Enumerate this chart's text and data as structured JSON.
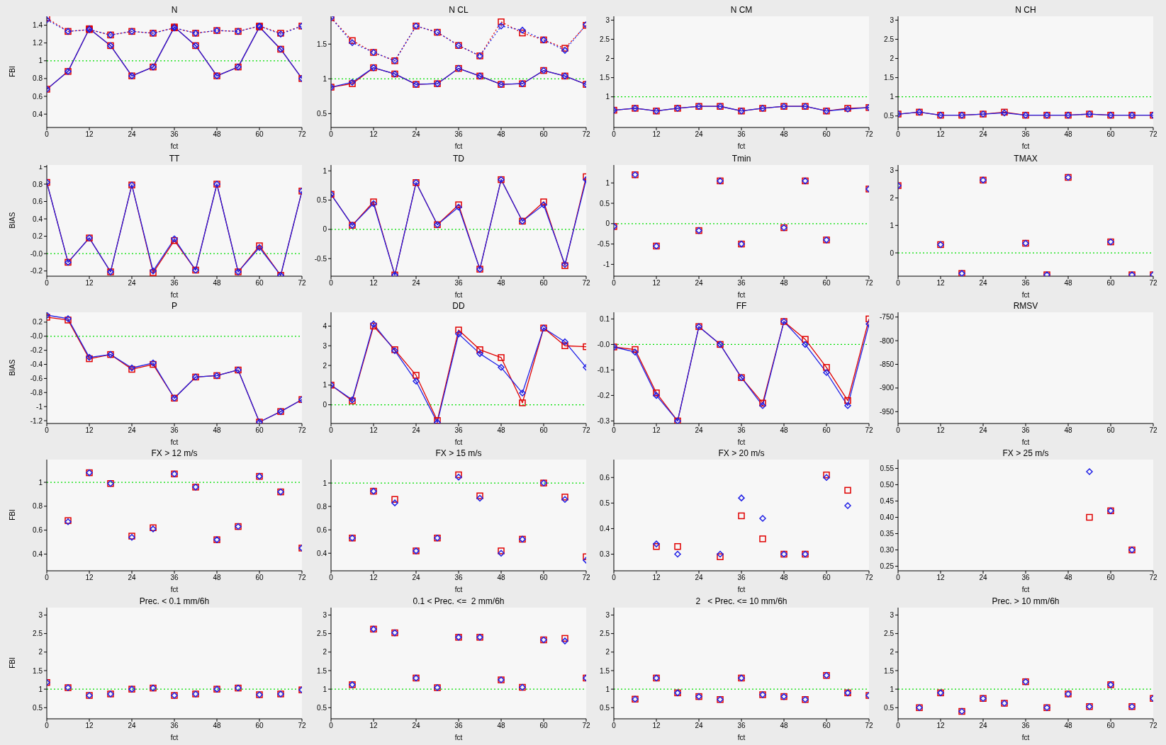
{
  "chart_data": [
    {
      "type": "line",
      "title": "N",
      "xlabel": "fct",
      "ylabel": "FBI",
      "x": [
        0,
        6,
        12,
        18,
        24,
        30,
        36,
        42,
        48,
        54,
        60,
        66,
        72
      ],
      "xlim": [
        0,
        72
      ],
      "xticks": [
        0,
        12,
        24,
        36,
        48,
        60,
        72
      ],
      "ylim": [
        0.25,
        1.5
      ],
      "yticks": [
        0.4,
        0.6,
        0.8,
        1.0,
        1.2,
        1.4
      ],
      "ref_lines": [
        {
          "axis": "y",
          "value": 1,
          "color": "#00e000",
          "line_style": "dotted"
        }
      ],
      "series": [
        {
          "color": "#e00000",
          "marker": "square",
          "line_style": "solid",
          "values": [
            0.68,
            0.88,
            1.36,
            1.17,
            0.83,
            0.93,
            1.38,
            1.17,
            0.83,
            0.93,
            1.38,
            1.13,
            0.8
          ]
        },
        {
          "color": "#2020e6",
          "marker": "diamond",
          "line_style": "solid",
          "values": [
            0.68,
            0.88,
            1.36,
            1.17,
            0.83,
            0.93,
            1.38,
            1.17,
            0.83,
            0.93,
            1.38,
            1.13,
            0.8
          ]
        },
        {
          "color": "#e00000",
          "marker": "square",
          "line_style": "dotted",
          "values": [
            1.48,
            1.33,
            1.35,
            1.29,
            1.33,
            1.31,
            1.37,
            1.31,
            1.34,
            1.33,
            1.39,
            1.31,
            1.39
          ]
        },
        {
          "color": "#2020e6",
          "marker": "diamond",
          "line_style": "dotted",
          "values": [
            1.46,
            1.33,
            1.35,
            1.29,
            1.33,
            1.31,
            1.37,
            1.31,
            1.34,
            1.33,
            1.39,
            1.3,
            1.39
          ]
        }
      ]
    },
    {
      "type": "line",
      "title": "N CL",
      "xlabel": "fct",
      "x": [
        0,
        6,
        12,
        18,
        24,
        30,
        36,
        42,
        48,
        54,
        60,
        66,
        72
      ],
      "xlim": [
        0,
        72
      ],
      "xticks": [
        0,
        12,
        24,
        36,
        48,
        60,
        72
      ],
      "ylim": [
        0.3,
        1.9
      ],
      "yticks": [
        0.5,
        1.0,
        1.5
      ],
      "ref_lines": [
        {
          "axis": "y",
          "value": 1,
          "color": "#00e000",
          "line_style": "dotted"
        }
      ],
      "series": [
        {
          "color": "#e00000",
          "marker": "square",
          "line_style": "solid",
          "values": [
            0.88,
            0.93,
            1.16,
            1.07,
            0.92,
            0.93,
            1.15,
            1.04,
            0.92,
            0.93,
            1.12,
            1.04,
            0.92
          ]
        },
        {
          "color": "#2020e6",
          "marker": "diamond",
          "line_style": "solid",
          "values": [
            0.88,
            0.95,
            1.16,
            1.07,
            0.92,
            0.93,
            1.15,
            1.04,
            0.92,
            0.93,
            1.12,
            1.04,
            0.92
          ]
        },
        {
          "color": "#e00000",
          "marker": "square",
          "line_style": "dotted",
          "values": [
            1.88,
            1.55,
            1.38,
            1.26,
            1.76,
            1.67,
            1.48,
            1.33,
            1.82,
            1.66,
            1.56,
            1.44,
            1.77
          ]
        },
        {
          "color": "#2020e6",
          "marker": "diamond",
          "line_style": "dotted",
          "values": [
            1.88,
            1.52,
            1.38,
            1.26,
            1.76,
            1.67,
            1.48,
            1.33,
            1.76,
            1.7,
            1.56,
            1.41,
            1.78
          ]
        }
      ]
    },
    {
      "type": "line",
      "title": "N CM",
      "xlabel": "fct",
      "x": [
        0,
        6,
        12,
        18,
        24,
        30,
        36,
        42,
        48,
        54,
        60,
        66,
        72
      ],
      "xlim": [
        0,
        72
      ],
      "xticks": [
        0,
        12,
        24,
        36,
        48,
        60,
        72
      ],
      "ylim": [
        0.2,
        3.1
      ],
      "yticks": [
        1.0,
        1.5,
        2.0,
        2.5,
        3.0
      ],
      "ref_lines": [
        {
          "axis": "y",
          "value": 1,
          "color": "#00e000",
          "line_style": "dotted"
        }
      ],
      "series": [
        {
          "color": "#e00000",
          "marker": "square",
          "line_style": "solid",
          "values": [
            0.65,
            0.7,
            0.63,
            0.7,
            0.75,
            0.75,
            0.63,
            0.7,
            0.75,
            0.75,
            0.63,
            0.7,
            0.72
          ]
        },
        {
          "color": "#2020e6",
          "marker": "diamond",
          "line_style": "solid",
          "values": [
            0.65,
            0.7,
            0.63,
            0.7,
            0.75,
            0.75,
            0.63,
            0.7,
            0.75,
            0.75,
            0.63,
            0.68,
            0.72
          ]
        }
      ]
    },
    {
      "type": "line",
      "title": "N CH",
      "xlabel": "fct",
      "x": [
        0,
        6,
        12,
        18,
        24,
        30,
        36,
        42,
        48,
        54,
        60,
        66,
        72
      ],
      "xlim": [
        0,
        72
      ],
      "xticks": [
        0,
        12,
        24,
        36,
        48,
        60,
        72
      ],
      "ylim": [
        0.2,
        3.1
      ],
      "yticks": [
        0.5,
        1.0,
        1.5,
        2.0,
        2.5,
        3.0
      ],
      "ref_lines": [
        {
          "axis": "y",
          "value": 1,
          "color": "#00e000",
          "line_style": "dotted"
        }
      ],
      "series": [
        {
          "color": "#e00000",
          "marker": "square",
          "line_style": "solid",
          "values": [
            0.55,
            0.6,
            0.52,
            0.52,
            0.55,
            0.6,
            0.52,
            0.52,
            0.52,
            0.55,
            0.52,
            0.52,
            0.52
          ]
        },
        {
          "color": "#2020e6",
          "marker": "diamond",
          "line_style": "solid",
          "values": [
            0.55,
            0.6,
            0.52,
            0.52,
            0.55,
            0.58,
            0.52,
            0.52,
            0.52,
            0.55,
            0.52,
            0.52,
            0.52
          ]
        }
      ]
    },
    {
      "type": "line",
      "title": "TT",
      "xlabel": "fct",
      "ylabel": "BIAS",
      "x": [
        0,
        6,
        12,
        18,
        24,
        30,
        36,
        42,
        48,
        54,
        60,
        66,
        72
      ],
      "xlim": [
        0,
        72
      ],
      "xticks": [
        0,
        12,
        24,
        36,
        48,
        60,
        72
      ],
      "ylim": [
        -0.26,
        1.02
      ],
      "yticks": [
        -0.2,
        {
          "value": 0,
          "label": "-0.0"
        },
        0.2,
        0.4,
        0.6,
        0.8,
        1.0
      ],
      "ref_lines": [
        {
          "axis": "y",
          "value": 0,
          "color": "#00e000",
          "line_style": "dotted"
        }
      ],
      "series": [
        {
          "color": "#e00000",
          "marker": "square",
          "line_style": "solid",
          "values": [
            0.82,
            -0.1,
            0.18,
            -0.21,
            0.79,
            -0.22,
            0.15,
            -0.19,
            0.8,
            -0.21,
            0.09,
            -0.25,
            0.72
          ]
        },
        {
          "color": "#2020e6",
          "marker": "diamond",
          "line_style": "solid",
          "values": [
            0.82,
            -0.1,
            0.18,
            -0.21,
            0.79,
            -0.2,
            0.17,
            -0.19,
            0.8,
            -0.21,
            0.07,
            -0.25,
            0.72
          ]
        }
      ]
    },
    {
      "type": "line",
      "title": "TD",
      "xlabel": "fct",
      "x": [
        0,
        6,
        12,
        18,
        24,
        30,
        36,
        42,
        48,
        54,
        60,
        66,
        72
      ],
      "xlim": [
        0,
        72
      ],
      "xticks": [
        0,
        12,
        24,
        36,
        48,
        60,
        72
      ],
      "ylim": [
        -0.8,
        1.1
      ],
      "yticks": [
        -0.5,
        0.0,
        0.5,
        1.0
      ],
      "ref_lines": [
        {
          "axis": "y",
          "value": 0,
          "color": "#00e000",
          "line_style": "dotted"
        }
      ],
      "series": [
        {
          "color": "#e00000",
          "marker": "square",
          "line_style": "solid",
          "values": [
            0.6,
            0.07,
            0.47,
            -0.78,
            0.8,
            0.08,
            0.42,
            -0.68,
            0.85,
            0.14,
            0.47,
            -0.62,
            0.9
          ]
        },
        {
          "color": "#2020e6",
          "marker": "diamond",
          "line_style": "solid",
          "values": [
            0.6,
            0.07,
            0.44,
            -0.78,
            0.8,
            0.08,
            0.38,
            -0.68,
            0.85,
            0.14,
            0.42,
            -0.6,
            0.85
          ]
        }
      ]
    },
    {
      "type": "scatter",
      "title": "Tmin",
      "xlabel": "fct",
      "xlim": [
        0,
        72
      ],
      "xticks": [
        0,
        12,
        24,
        36,
        48,
        60,
        72
      ],
      "ylim": [
        -1.29,
        1.44
      ],
      "yticks": [
        -1.0,
        -0.5,
        0.0,
        0.5,
        1.0
      ],
      "ref_lines": [
        {
          "axis": "y",
          "value": 0,
          "color": "#00e000",
          "line_style": "dotted"
        }
      ],
      "series": [
        {
          "color": "#e00000",
          "marker": "square",
          "x": [
            0,
            6,
            12,
            24,
            30,
            36,
            48,
            54,
            60,
            72
          ],
          "values": [
            -0.07,
            1.2,
            -0.55,
            -0.17,
            1.05,
            -0.5,
            -0.1,
            1.05,
            -0.4,
            0.85
          ]
        },
        {
          "color": "#2020e6",
          "marker": "diamond",
          "x": [
            0,
            6,
            12,
            24,
            30,
            36,
            48,
            54,
            60,
            72
          ],
          "values": [
            -0.07,
            1.2,
            -0.55,
            -0.17,
            1.05,
            -0.5,
            -0.1,
            1.05,
            -0.4,
            0.85
          ]
        }
      ]
    },
    {
      "type": "scatter",
      "title": "TMAX",
      "xlabel": "fct",
      "xlim": [
        0,
        72
      ],
      "xticks": [
        0,
        12,
        24,
        36,
        48,
        60,
        72
      ],
      "ylim": [
        -0.85,
        3.2
      ],
      "yticks": [
        0,
        1,
        2,
        3
      ],
      "ref_lines": [
        {
          "axis": "y",
          "value": 0,
          "color": "#00e000",
          "line_style": "dotted"
        }
      ],
      "series": [
        {
          "color": "#e00000",
          "marker": "square",
          "x": [
            0,
            12,
            18,
            24,
            36,
            42,
            48,
            60,
            66,
            72
          ],
          "values": [
            2.45,
            0.3,
            -0.75,
            2.65,
            0.35,
            -0.8,
            2.75,
            0.4,
            -0.8,
            -0.8
          ]
        },
        {
          "color": "#2020e6",
          "marker": "diamond",
          "x": [
            0,
            12,
            18,
            24,
            36,
            42,
            48,
            60,
            66,
            72
          ],
          "values": [
            2.45,
            0.3,
            -0.75,
            2.65,
            0.35,
            -0.8,
            2.75,
            0.4,
            -0.8,
            -0.8
          ]
        }
      ]
    },
    {
      "type": "line",
      "title": "P",
      "xlabel": "fct",
      "ylabel": "BIAS",
      "x": [
        0,
        6,
        12,
        18,
        24,
        30,
        36,
        42,
        48,
        54,
        60,
        66,
        72
      ],
      "xlim": [
        0,
        72
      ],
      "xticks": [
        0,
        12,
        24,
        36,
        48,
        60,
        72
      ],
      "ylim": [
        -1.24,
        0.34
      ],
      "yticks": [
        -1.2,
        -1.0,
        -0.8,
        -0.6,
        -0.4,
        -0.2,
        {
          "value": 0,
          "label": "-0.0"
        },
        0.2
      ],
      "ref_lines": [
        {
          "axis": "y",
          "value": 0,
          "color": "#00e000",
          "line_style": "dotted"
        }
      ],
      "series": [
        {
          "color": "#e00000",
          "marker": "square",
          "line_style": "solid",
          "values": [
            0.27,
            0.23,
            -0.32,
            -0.26,
            -0.47,
            -0.4,
            -0.88,
            -0.58,
            -0.56,
            -0.48,
            -1.22,
            -1.07,
            -0.9
          ]
        },
        {
          "color": "#2020e6",
          "marker": "diamond",
          "line_style": "solid",
          "values": [
            0.3,
            0.25,
            -0.3,
            -0.26,
            -0.45,
            -0.38,
            -0.88,
            -0.58,
            -0.56,
            -0.48,
            -1.22,
            -1.07,
            -0.9
          ]
        }
      ]
    },
    {
      "type": "line",
      "title": "DD",
      "xlabel": "fct",
      "x": [
        0,
        6,
        12,
        18,
        24,
        30,
        36,
        42,
        48,
        54,
        60,
        66,
        72
      ],
      "xlim": [
        0,
        72
      ],
      "xticks": [
        0,
        12,
        24,
        36,
        48,
        60,
        72
      ],
      "ylim": [
        -0.95,
        4.7
      ],
      "yticks": [
        0,
        1,
        2,
        3,
        4
      ],
      "ref_lines": [
        {
          "axis": "y",
          "value": 0,
          "color": "#00e000",
          "line_style": "dotted"
        }
      ],
      "series": [
        {
          "color": "#e00000",
          "marker": "square",
          "line_style": "solid",
          "values": [
            1.0,
            0.2,
            4.0,
            2.8,
            1.5,
            -0.8,
            3.8,
            2.8,
            2.4,
            0.1,
            3.9,
            3.0,
            2.95
          ]
        },
        {
          "color": "#2020e6",
          "marker": "diamond",
          "line_style": "solid",
          "values": [
            1.0,
            0.25,
            4.1,
            2.75,
            1.2,
            -0.9,
            3.6,
            2.6,
            1.9,
            0.6,
            3.9,
            3.2,
            1.9
          ]
        }
      ]
    },
    {
      "type": "line",
      "title": "FF",
      "xlabel": "fct",
      "x": [
        0,
        6,
        12,
        18,
        24,
        30,
        36,
        42,
        48,
        54,
        60,
        66,
        72
      ],
      "xlim": [
        0,
        72
      ],
      "xticks": [
        0,
        12,
        24,
        36,
        48,
        60,
        72
      ],
      "ylim": [
        -0.31,
        0.126
      ],
      "yticks": [
        -0.3,
        -0.2,
        -0.1,
        {
          "value": 0,
          "label": "-0.0"
        },
        0.1
      ],
      "ref_lines": [
        {
          "axis": "y",
          "value": 0,
          "color": "#00e000",
          "line_style": "dotted"
        }
      ],
      "series": [
        {
          "color": "#e00000",
          "marker": "square",
          "line_style": "solid",
          "values": [
            -0.01,
            -0.02,
            -0.19,
            -0.3,
            0.07,
            0.0,
            -0.13,
            -0.23,
            0.09,
            0.02,
            -0.09,
            -0.22,
            0.1
          ]
        },
        {
          "color": "#2020e6",
          "marker": "diamond",
          "line_style": "solid",
          "values": [
            -0.01,
            -0.03,
            -0.2,
            -0.3,
            0.07,
            0.0,
            -0.13,
            -0.24,
            0.09,
            0.0,
            -0.11,
            -0.24,
            0.08
          ]
        }
      ]
    },
    {
      "type": "line",
      "title": "RMSV",
      "xlabel": "fct",
      "xlim": [
        0,
        72
      ],
      "xticks": [
        0,
        12,
        24,
        36,
        48,
        60,
        72
      ],
      "ylim": [
        -975,
        -740
      ],
      "yticks": [
        -950,
        -900,
        -850,
        -800,
        -750
      ]
    },
    {
      "type": "scatter",
      "title": "FX > 12 m/s",
      "xlabel": "fct",
      "ylabel": "FBI",
      "xlim": [
        0,
        72
      ],
      "xticks": [
        0,
        12,
        24,
        36,
        48,
        60,
        72
      ],
      "ylim": [
        0.26,
        1.19
      ],
      "yticks": [
        0.4,
        0.6,
        0.8,
        1.0
      ],
      "ref_lines": [
        {
          "axis": "y",
          "value": 1,
          "color": "#00e000",
          "line_style": "dotted"
        }
      ],
      "series": [
        {
          "color": "#e00000",
          "marker": "square",
          "x": [
            6,
            12,
            18,
            24,
            30,
            36,
            42,
            48,
            54,
            60,
            66,
            72
          ],
          "values": [
            0.68,
            1.08,
            0.99,
            0.55,
            0.62,
            1.07,
            0.96,
            0.52,
            0.63,
            1.05,
            0.92,
            0.45
          ]
        },
        {
          "color": "#2020e6",
          "marker": "diamond",
          "x": [
            6,
            12,
            18,
            24,
            30,
            36,
            42,
            48,
            54,
            60,
            66,
            72
          ],
          "values": [
            0.67,
            1.08,
            0.99,
            0.54,
            0.61,
            1.07,
            0.96,
            0.52,
            0.63,
            1.05,
            0.92,
            0.45
          ]
        }
      ]
    },
    {
      "type": "scatter",
      "title": "FX > 15 m/s",
      "xlabel": "fct",
      "xlim": [
        0,
        72
      ],
      "xticks": [
        0,
        12,
        24,
        36,
        48,
        60,
        72
      ],
      "ylim": [
        0.25,
        1.2
      ],
      "yticks": [
        0.4,
        0.6,
        0.8,
        1.0
      ],
      "ref_lines": [
        {
          "axis": "y",
          "value": 1,
          "color": "#00e000",
          "line_style": "dotted"
        }
      ],
      "series": [
        {
          "color": "#e00000",
          "marker": "square",
          "x": [
            6,
            12,
            18,
            24,
            30,
            36,
            42,
            48,
            54,
            60,
            66,
            72
          ],
          "values": [
            0.53,
            0.93,
            0.86,
            0.42,
            0.53,
            1.07,
            0.89,
            0.42,
            0.52,
            1.0,
            0.88,
            0.37
          ]
        },
        {
          "color": "#2020e6",
          "marker": "diamond",
          "x": [
            6,
            12,
            18,
            24,
            30,
            36,
            42,
            48,
            54,
            60,
            66,
            72
          ],
          "values": [
            0.53,
            0.93,
            0.83,
            0.42,
            0.53,
            1.05,
            0.87,
            0.4,
            0.52,
            1.0,
            0.86,
            0.34
          ]
        }
      ]
    },
    {
      "type": "scatter",
      "title": "FX > 20 m/s",
      "xlabel": "fct",
      "xlim": [
        0,
        72
      ],
      "xticks": [
        0,
        12,
        24,
        36,
        48,
        60,
        72
      ],
      "ylim": [
        0.235,
        0.67
      ],
      "yticks": [
        0.3,
        0.4,
        0.5,
        0.6
      ],
      "series": [
        {
          "color": "#e00000",
          "marker": "square",
          "x": [
            12,
            18,
            30,
            36,
            42,
            48,
            54,
            60,
            66
          ],
          "values": [
            0.33,
            0.33,
            0.29,
            0.45,
            0.36,
            0.3,
            0.3,
            0.61,
            0.55
          ]
        },
        {
          "color": "#2020e6",
          "marker": "diamond",
          "x": [
            12,
            18,
            30,
            36,
            42,
            48,
            54,
            60,
            66
          ],
          "values": [
            0.34,
            0.3,
            0.3,
            0.52,
            0.44,
            0.3,
            0.3,
            0.6,
            0.49
          ]
        }
      ]
    },
    {
      "type": "scatter",
      "title": "FX > 25 m/s",
      "xlabel": "fct",
      "xlim": [
        0,
        72
      ],
      "xticks": [
        0,
        12,
        24,
        36,
        48,
        60,
        72
      ],
      "ylim": [
        0.236,
        0.577
      ],
      "yticks": [
        0.25,
        {
          "value": 0.3,
          "label": "0.30"
        },
        0.35,
        {
          "value": 0.4,
          "label": "0.40"
        },
        0.45,
        {
          "value": 0.5,
          "label": "0.50"
        },
        0.55
      ],
      "series": [
        {
          "color": "#e00000",
          "marker": "square",
          "x": [
            54,
            60,
            66
          ],
          "values": [
            0.4,
            0.42,
            0.3
          ]
        },
        {
          "color": "#2020e6",
          "marker": "diamond",
          "x": [
            54,
            60,
            66
          ],
          "values": [
            0.54,
            0.42,
            0.3
          ]
        }
      ]
    },
    {
      "type": "scatter",
      "title": "Prec. < 0.1 mm/6h",
      "xlabel": "fct",
      "ylabel": "FBI",
      "x": [
        0,
        6,
        12,
        18,
        24,
        30,
        36,
        42,
        48,
        54,
        60,
        66,
        72
      ],
      "xlim": [
        0,
        72
      ],
      "xticks": [
        0,
        12,
        24,
        36,
        48,
        60,
        72
      ],
      "ylim": [
        0.2,
        3.2
      ],
      "yticks": [
        0.5,
        1.0,
        1.5,
        2.0,
        2.5,
        3.0
      ],
      "ref_lines": [
        {
          "axis": "y",
          "value": 1,
          "color": "#00e000",
          "line_style": "dotted"
        }
      ],
      "series": [
        {
          "color": "#e00000",
          "marker": "square",
          "values": [
            1.18,
            1.04,
            0.83,
            0.87,
            1.0,
            1.03,
            0.83,
            0.87,
            1.0,
            1.03,
            0.85,
            0.87,
            0.98
          ]
        },
        {
          "color": "#2020e6",
          "marker": "diamond",
          "values": [
            1.18,
            1.04,
            0.83,
            0.87,
            1.0,
            1.03,
            0.83,
            0.87,
            1.0,
            1.03,
            0.85,
            0.87,
            0.98
          ]
        }
      ]
    },
    {
      "type": "scatter",
      "title": "0.1 < Prec. <=  2 mm/6h",
      "xlabel": "fct",
      "x": [
        6,
        12,
        18,
        24,
        30,
        36,
        42,
        48,
        54,
        60,
        66,
        72
      ],
      "xlim": [
        0,
        72
      ],
      "xticks": [
        0,
        12,
        24,
        36,
        48,
        60,
        72
      ],
      "ylim": [
        0.2,
        3.2
      ],
      "yticks": [
        0.5,
        1.0,
        1.5,
        2.0,
        2.5,
        3.0
      ],
      "ref_lines": [
        {
          "axis": "y",
          "value": 1,
          "color": "#00e000",
          "line_style": "dotted"
        }
      ],
      "series": [
        {
          "color": "#e00000",
          "marker": "square",
          "values": [
            1.12,
            2.62,
            2.52,
            1.3,
            1.04,
            2.4,
            2.4,
            1.25,
            1.05,
            2.33,
            2.37,
            1.3
          ]
        },
        {
          "color": "#2020e6",
          "marker": "diamond",
          "values": [
            1.12,
            2.62,
            2.52,
            1.3,
            1.04,
            2.4,
            2.4,
            1.25,
            1.05,
            2.33,
            2.3,
            1.3
          ]
        }
      ]
    },
    {
      "type": "scatter",
      "title": "2   < Prec. <= 10 mm/6h",
      "xlabel": "fct",
      "x": [
        6,
        12,
        18,
        24,
        30,
        36,
        42,
        48,
        54,
        60,
        66,
        72
      ],
      "xlim": [
        0,
        72
      ],
      "xticks": [
        0,
        12,
        24,
        36,
        48,
        60,
        72
      ],
      "ylim": [
        0.2,
        3.2
      ],
      "yticks": [
        0.5,
        1.0,
        1.5,
        2.0,
        2.5,
        3.0
      ],
      "ref_lines": [
        {
          "axis": "y",
          "value": 1,
          "color": "#00e000",
          "line_style": "dotted"
        }
      ],
      "series": [
        {
          "color": "#e00000",
          "marker": "square",
          "values": [
            0.73,
            1.3,
            0.9,
            0.8,
            0.72,
            1.3,
            0.85,
            0.8,
            0.72,
            1.37,
            0.9,
            0.83
          ]
        },
        {
          "color": "#2020e6",
          "marker": "diamond",
          "values": [
            0.73,
            1.3,
            0.9,
            0.8,
            0.72,
            1.3,
            0.85,
            0.8,
            0.72,
            1.37,
            0.9,
            0.83
          ]
        }
      ]
    },
    {
      "type": "scatter",
      "title": "Prec. > 10 mm/6h",
      "xlabel": "fct",
      "x": [
        6,
        12,
        18,
        24,
        30,
        36,
        42,
        48,
        54,
        60,
        66,
        72
      ],
      "xlim": [
        0,
        72
      ],
      "xticks": [
        0,
        12,
        24,
        36,
        48,
        60,
        72
      ],
      "ylim": [
        0.2,
        3.2
      ],
      "yticks": [
        0.5,
        1.0,
        1.5,
        2.0,
        2.5,
        3.0
      ],
      "ref_lines": [
        {
          "axis": "y",
          "value": 1,
          "color": "#00e000",
          "line_style": "dotted"
        }
      ],
      "series": [
        {
          "color": "#e00000",
          "marker": "square",
          "values": [
            0.5,
            0.9,
            0.4,
            0.75,
            0.62,
            1.2,
            0.5,
            0.87,
            0.53,
            1.12,
            0.53,
            0.75
          ]
        },
        {
          "color": "#2020e6",
          "marker": "diamond",
          "values": [
            0.5,
            0.9,
            0.4,
            0.75,
            0.62,
            1.2,
            0.5,
            0.87,
            0.53,
            1.12,
            0.53,
            0.75
          ]
        }
      ]
    }
  ]
}
